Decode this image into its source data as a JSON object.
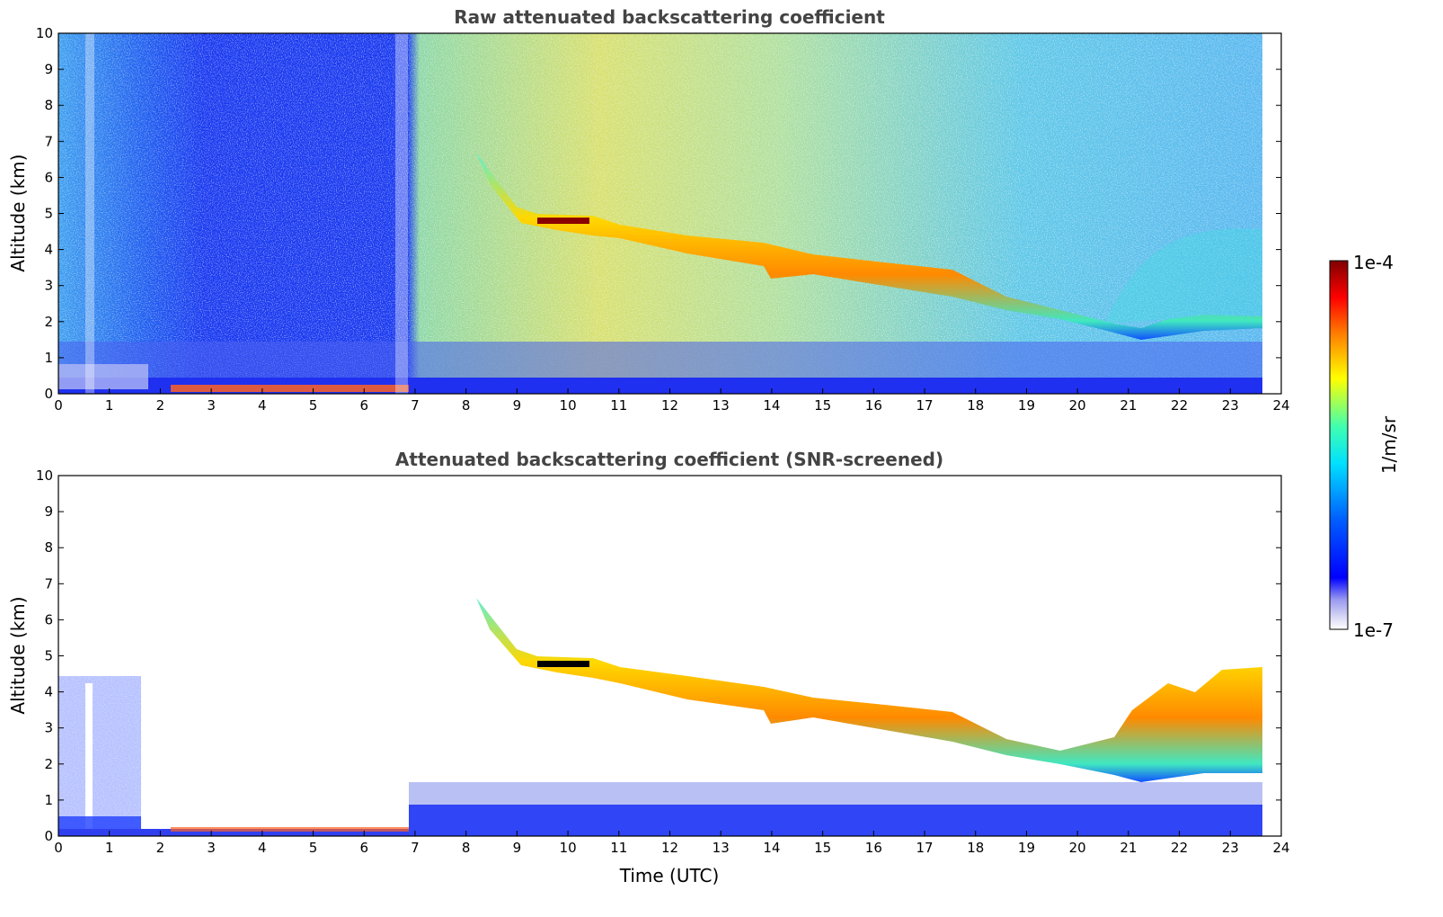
{
  "chart_data": [
    {
      "type": "heatmap",
      "title": "Raw attenuated backscattering coefficient",
      "xlabel": "",
      "ylabel": "Altitude (km)",
      "xlim": [
        0,
        24
      ],
      "ylim": [
        0,
        10
      ],
      "x_ticks": [
        "0",
        "1",
        "2",
        "3",
        "4",
        "5",
        "6",
        "7",
        "8",
        "9",
        "10",
        "11",
        "12",
        "13",
        "14",
        "15",
        "16",
        "17",
        "18",
        "19",
        "20",
        "21",
        "22",
        "23",
        "24"
      ],
      "y_ticks": [
        "0",
        "1",
        "2",
        "3",
        "4",
        "5",
        "6",
        "7",
        "8",
        "9",
        "10"
      ],
      "data_extent_hours": [
        0,
        23.6
      ],
      "colorscale": "jet",
      "features": {
        "cloud_layer_top_km": [
          [
            8.2,
            6.5
          ],
          [
            9.0,
            5.0
          ],
          [
            10.5,
            4.5
          ],
          [
            12,
            4.4
          ],
          [
            14,
            3.8
          ],
          [
            16,
            3.4
          ],
          [
            18,
            3.0
          ],
          [
            20,
            2.5
          ],
          [
            21,
            2.1
          ],
          [
            22,
            2.5
          ],
          [
            23.6,
            2.7
          ]
        ],
        "cloud_layer_base_km": [
          [
            9.0,
            4.6
          ],
          [
            10.5,
            4.3
          ],
          [
            12,
            3.9
          ],
          [
            14,
            3.0
          ],
          [
            16,
            2.9
          ],
          [
            18,
            2.6
          ],
          [
            20,
            1.9
          ],
          [
            21,
            1.4
          ],
          [
            22,
            1.6
          ],
          [
            23.6,
            1.7
          ]
        ],
        "saturated_segment": {
          "x_start": 9.4,
          "x_end": 10.4,
          "altitude_km": 4.75
        },
        "boundary_layer_top_km": 0.9
      }
    },
    {
      "type": "heatmap",
      "title": "Attenuated backscattering coefficient (SNR-screened)",
      "xlabel": "Time (UTC)",
      "ylabel": "Altitude (km)",
      "xlim": [
        0,
        24
      ],
      "ylim": [
        0,
        10
      ],
      "x_ticks": [
        "0",
        "1",
        "2",
        "3",
        "4",
        "5",
        "6",
        "7",
        "8",
        "9",
        "10",
        "11",
        "12",
        "13",
        "14",
        "15",
        "16",
        "17",
        "18",
        "19",
        "20",
        "21",
        "22",
        "23",
        "24"
      ],
      "y_ticks": [
        "0",
        "1",
        "2",
        "3",
        "4",
        "5",
        "6",
        "7",
        "8",
        "9",
        "10"
      ],
      "data_extent_hours": [
        0,
        23.6
      ],
      "colorscale": "jet",
      "screened_region": "clear-sky noise removed above boundary layer",
      "early_low_clouds": {
        "x_start": 0,
        "x_end": 1.7,
        "top_km": 4.4
      }
    }
  ],
  "colorbar": {
    "max_label": "1e-4",
    "min_label": "1e-7",
    "units_label": "1/m/sr",
    "scale": "log",
    "colors": [
      "#ffffff",
      "#dcdcf5",
      "#b4b4ee",
      "#7878f0",
      "#2020ff",
      "#0000ff",
      "#0040ff",
      "#0080ff",
      "#00c0ff",
      "#00ffff",
      "#40ffc0",
      "#80ff80",
      "#c0ff40",
      "#ffff00",
      "#ffc000",
      "#ff8000",
      "#ff4000",
      "#ff0000",
      "#c00000",
      "#800000"
    ]
  }
}
